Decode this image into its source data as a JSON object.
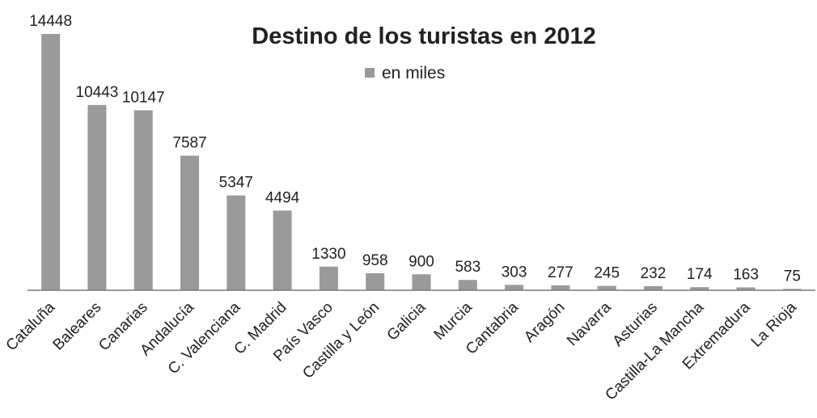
{
  "chart_data": {
    "type": "bar",
    "title": "Destino de los turistas en 2012",
    "xlabel": "",
    "ylabel": "",
    "categories": [
      "Cataluña",
      "Baleares",
      "Canarias",
      "Andalucía",
      "C. Valenciana",
      "C. Madrid",
      "País Vasco",
      "Castilla y León",
      "Galicia",
      "Murcia",
      "Cantabria",
      "Aragón",
      "Navarra",
      "Asturias",
      "Castilla-La Mancha",
      "Extremadura",
      "La Rioja"
    ],
    "series": [
      {
        "name": "en miles",
        "values": [
          14448,
          10443,
          10147,
          7587,
          5347,
          4494,
          1330,
          958,
          900,
          583,
          303,
          277,
          245,
          232,
          174,
          163,
          75
        ]
      }
    ],
    "ylim": [
      0,
      14448
    ],
    "grid": false,
    "legend": "top-center",
    "bar_color": "#9a9a9a",
    "axis_color": "#7a7a7a"
  }
}
